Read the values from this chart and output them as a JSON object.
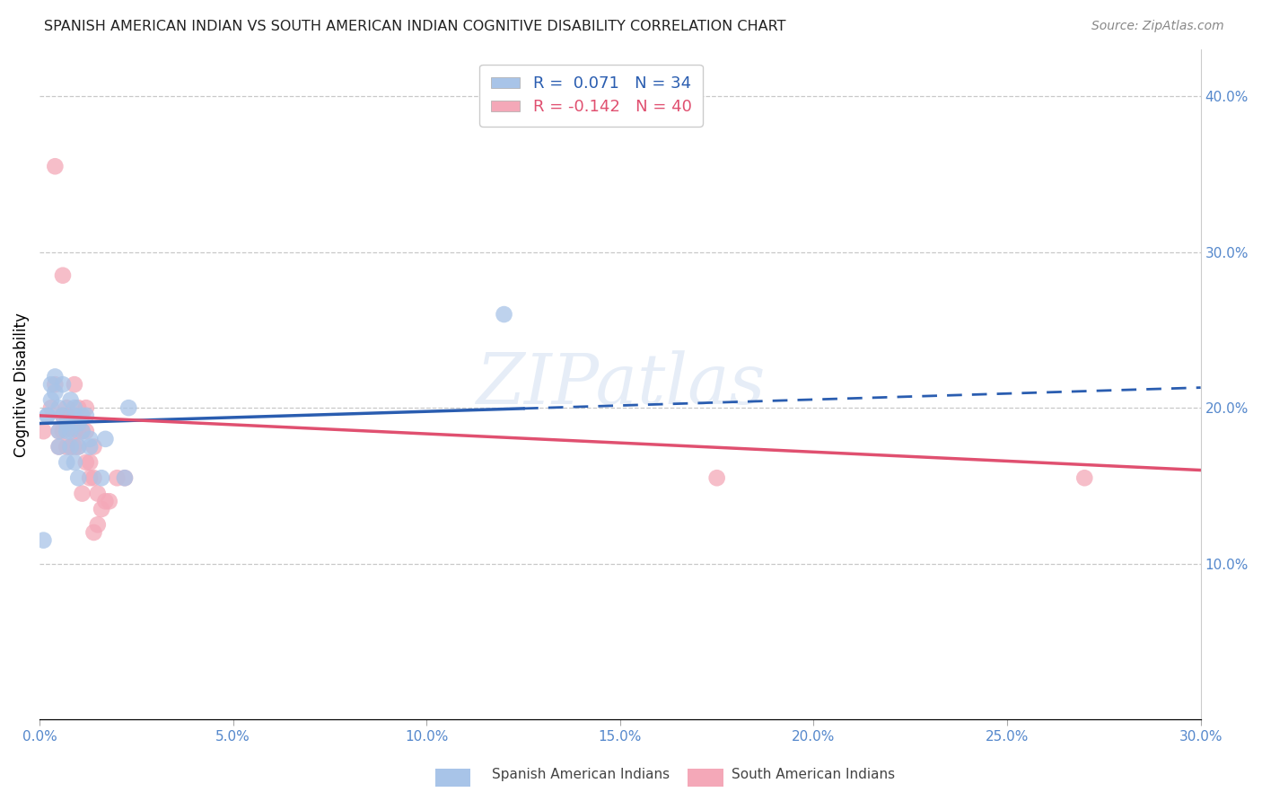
{
  "title": "SPANISH AMERICAN INDIAN VS SOUTH AMERICAN INDIAN COGNITIVE DISABILITY CORRELATION CHART",
  "source": "Source: ZipAtlas.com",
  "ylabel": "Cognitive Disability",
  "xlim": [
    0.0,
    0.3
  ],
  "ylim": [
    0.0,
    0.43
  ],
  "xticks": [
    0.0,
    0.05,
    0.1,
    0.15,
    0.2,
    0.25,
    0.3
  ],
  "yticks_right": [
    0.1,
    0.2,
    0.3,
    0.4
  ],
  "ytick_labels_right": [
    "10.0%",
    "20.0%",
    "30.0%",
    "40.0%"
  ],
  "xtick_labels": [
    "0.0%",
    "5.0%",
    "10.0%",
    "15.0%",
    "20.0%",
    "25.0%",
    "30.0%"
  ],
  "blue_R": 0.071,
  "blue_N": 34,
  "pink_R": -0.142,
  "pink_N": 40,
  "blue_color": "#a8c4e8",
  "pink_color": "#f4a8b8",
  "blue_line_color": "#2a5db0",
  "pink_line_color": "#e05070",
  "watermark": "ZIPatlas",
  "legend_label_blue": "Spanish American Indians",
  "legend_label_pink": "South American Indians",
  "blue_line_y0": 0.19,
  "blue_line_y1": 0.213,
  "blue_line_x_solid_end": 0.125,
  "pink_line_y0": 0.195,
  "pink_line_y1": 0.16,
  "blue_scatter_x": [
    0.001,
    0.002,
    0.003,
    0.003,
    0.004,
    0.004,
    0.005,
    0.005,
    0.005,
    0.006,
    0.006,
    0.007,
    0.007,
    0.007,
    0.008,
    0.008,
    0.008,
    0.009,
    0.009,
    0.009,
    0.01,
    0.01,
    0.01,
    0.011,
    0.011,
    0.012,
    0.013,
    0.013,
    0.016,
    0.017,
    0.022,
    0.023,
    0.12,
    0.002
  ],
  "blue_scatter_y": [
    0.115,
    0.195,
    0.215,
    0.205,
    0.22,
    0.21,
    0.185,
    0.175,
    0.2,
    0.215,
    0.195,
    0.165,
    0.19,
    0.185,
    0.205,
    0.175,
    0.185,
    0.165,
    0.2,
    0.195,
    0.155,
    0.175,
    0.19,
    0.185,
    0.195,
    0.195,
    0.175,
    0.18,
    0.155,
    0.18,
    0.155,
    0.2,
    0.26,
    0.195
  ],
  "pink_scatter_x": [
    0.001,
    0.003,
    0.004,
    0.005,
    0.005,
    0.006,
    0.006,
    0.007,
    0.007,
    0.007,
    0.008,
    0.008,
    0.008,
    0.009,
    0.009,
    0.009,
    0.01,
    0.01,
    0.01,
    0.011,
    0.011,
    0.012,
    0.012,
    0.012,
    0.013,
    0.013,
    0.014,
    0.014,
    0.014,
    0.015,
    0.015,
    0.016,
    0.017,
    0.018,
    0.02,
    0.022,
    0.27,
    0.175,
    0.004,
    0.006
  ],
  "pink_scatter_y": [
    0.185,
    0.2,
    0.215,
    0.175,
    0.185,
    0.185,
    0.195,
    0.195,
    0.175,
    0.2,
    0.19,
    0.175,
    0.195,
    0.185,
    0.175,
    0.215,
    0.185,
    0.175,
    0.2,
    0.145,
    0.185,
    0.185,
    0.165,
    0.2,
    0.155,
    0.165,
    0.155,
    0.175,
    0.12,
    0.125,
    0.145,
    0.135,
    0.14,
    0.14,
    0.155,
    0.155,
    0.155,
    0.155,
    0.355,
    0.285
  ]
}
